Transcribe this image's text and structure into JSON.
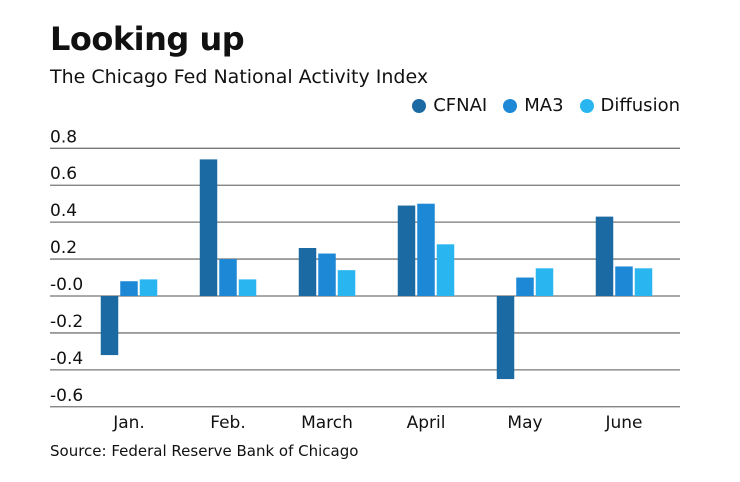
{
  "chart_data": {
    "type": "bar",
    "title": "Looking up",
    "subtitle": "The Chicago Fed National Activity Index",
    "categories": [
      "Jan.",
      "Feb.",
      "March",
      "April",
      "May",
      "June"
    ],
    "series": [
      {
        "name": "CFNAI",
        "color": "#1c6aa4",
        "values": [
          -0.32,
          0.74,
          0.26,
          0.49,
          -0.45,
          0.43
        ]
      },
      {
        "name": "MA3",
        "color": "#1d88d6",
        "values": [
          0.08,
          0.2,
          0.23,
          0.5,
          0.1,
          0.16
        ]
      },
      {
        "name": "Diffusion",
        "color": "#29b6f0",
        "values": [
          0.09,
          0.09,
          0.14,
          0.28,
          0.15,
          0.15
        ]
      }
    ],
    "yticks": [
      "0.8",
      "0.6",
      "0.4",
      "0.2",
      "-0.0",
      "-0.2",
      "-0.4",
      "-0.6"
    ],
    "ytick_values": [
      0.8,
      0.6,
      0.4,
      0.2,
      0,
      -0.2,
      -0.4,
      -0.6
    ],
    "ylim": [
      -0.6,
      0.8
    ],
    "grid": true,
    "legend": "top-right",
    "source": "Source: Federal Reserve Bank of Chicago"
  }
}
